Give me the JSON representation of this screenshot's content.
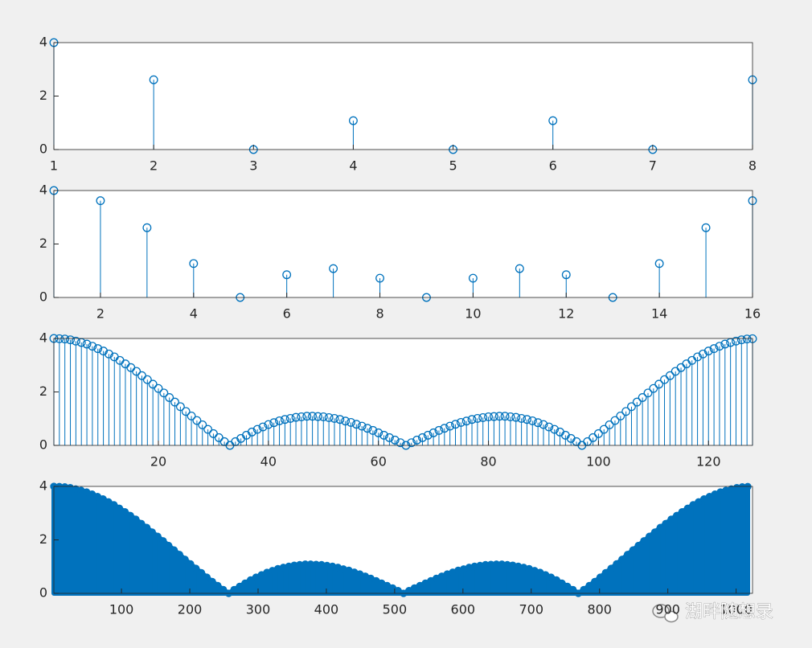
{
  "chart_data": [
    {
      "type": "stem",
      "color": "#0072bd",
      "filled": false,
      "x": [
        1,
        2,
        3,
        4,
        5,
        6,
        7,
        8
      ],
      "values": [
        4,
        2.61,
        0,
        1.08,
        0,
        1.08,
        0,
        2.61
      ],
      "xlim": [
        1,
        8
      ],
      "xticks": [
        1,
        2,
        3,
        4,
        5,
        6,
        7,
        8
      ],
      "ylim": [
        0,
        4
      ],
      "yticks": [
        0,
        2,
        4
      ]
    },
    {
      "type": "stem",
      "color": "#0072bd",
      "filled": false,
      "x": [
        1,
        2,
        3,
        4,
        5,
        6,
        7,
        8,
        9,
        10,
        11,
        12,
        13,
        14,
        15,
        16
      ],
      "values": [
        4,
        3.62,
        2.61,
        1.27,
        0,
        0.85,
        1.08,
        0.72,
        0,
        0.72,
        1.08,
        0.85,
        0,
        1.27,
        2.61,
        3.62
      ],
      "xlim": [
        1,
        16
      ],
      "xticks": [
        2,
        4,
        6,
        8,
        10,
        12,
        14,
        16
      ],
      "ylim": [
        0,
        4
      ],
      "yticks": [
        0,
        2,
        4
      ]
    },
    {
      "type": "stem",
      "color": "#0072bd",
      "filled": false,
      "x": [
        1,
        2,
        3,
        4,
        5,
        6,
        7,
        8,
        9,
        10,
        11,
        12,
        13,
        14,
        15,
        16,
        17,
        18,
        19,
        20,
        21,
        22,
        23,
        24,
        25,
        26,
        27,
        28,
        29,
        30,
        31,
        32,
        33,
        34,
        35,
        36,
        37,
        38,
        39,
        40,
        41,
        42,
        43,
        44,
        45,
        46,
        47,
        48,
        49,
        50,
        51,
        52,
        53,
        54,
        55,
        56,
        57,
        58,
        59,
        60,
        61,
        62,
        63,
        64,
        65,
        66,
        67,
        68,
        69,
        70,
        71,
        72,
        73,
        74,
        75,
        76,
        77,
        78,
        79,
        80,
        81,
        82,
        83,
        84,
        85,
        86,
        87,
        88,
        89,
        90,
        91,
        92,
        93,
        94,
        95,
        96,
        97,
        98,
        99,
        100,
        101,
        102,
        103,
        104,
        105,
        106,
        107,
        108,
        109,
        110,
        111,
        112,
        113,
        114,
        115,
        116,
        117,
        118,
        119,
        120,
        121,
        122,
        123,
        124,
        125,
        126,
        127,
        128
      ],
      "values": [
        4,
        3.99,
        3.98,
        3.95,
        3.9,
        3.85,
        3.79,
        3.71,
        3.62,
        3.53,
        3.42,
        3.31,
        3.18,
        3.05,
        2.91,
        2.77,
        2.61,
        2.46,
        2.29,
        2.13,
        1.96,
        1.79,
        1.62,
        1.45,
        1.27,
        1.1,
        0.93,
        0.77,
        0.6,
        0.44,
        0.29,
        0.14,
        0,
        0.14,
        0.26,
        0.38,
        0.5,
        0.6,
        0.69,
        0.78,
        0.85,
        0.92,
        0.97,
        1.01,
        1.05,
        1.07,
        1.09,
        1.09,
        1.08,
        1.07,
        1.04,
        1.01,
        0.97,
        0.91,
        0.86,
        0.79,
        0.72,
        0.64,
        0.56,
        0.47,
        0.38,
        0.29,
        0.2,
        0.1,
        0,
        0.1,
        0.2,
        0.29,
        0.38,
        0.47,
        0.56,
        0.64,
        0.72,
        0.79,
        0.86,
        0.91,
        0.97,
        1.01,
        1.04,
        1.07,
        1.08,
        1.09,
        1.09,
        1.07,
        1.05,
        1.01,
        0.97,
        0.92,
        0.85,
        0.78,
        0.69,
        0.6,
        0.5,
        0.38,
        0.26,
        0.14,
        0,
        0.14,
        0.29,
        0.44,
        0.6,
        0.77,
        0.93,
        1.1,
        1.27,
        1.45,
        1.62,
        1.79,
        1.96,
        2.13,
        2.29,
        2.46,
        2.61,
        2.77,
        2.91,
        3.05,
        3.18,
        3.31,
        3.42,
        3.53,
        3.62,
        3.71,
        3.79,
        3.85,
        3.9,
        3.95,
        3.98,
        3.99
      ],
      "xlim": [
        1,
        128
      ],
      "xticks": [
        20,
        40,
        60,
        80,
        100,
        120
      ],
      "ylim": [
        0,
        4
      ],
      "yticks": [
        0,
        2,
        4
      ]
    },
    {
      "type": "stem",
      "color": "#0072bd",
      "filled": true,
      "x": [
        1,
        9,
        17,
        25,
        33,
        41,
        49,
        57,
        65,
        73,
        81,
        89,
        97,
        105,
        113,
        121,
        129,
        137,
        145,
        153,
        161,
        169,
        177,
        185,
        193,
        201,
        209,
        217,
        225,
        233,
        241,
        249,
        257,
        265,
        273,
        281,
        289,
        297,
        305,
        313,
        321,
        329,
        337,
        345,
        353,
        361,
        369,
        377,
        385,
        393,
        401,
        409,
        417,
        425,
        433,
        441,
        449,
        457,
        465,
        473,
        481,
        489,
        497,
        505,
        513,
        521,
        529,
        537,
        545,
        553,
        561,
        569,
        577,
        585,
        593,
        601,
        609,
        617,
        625,
        633,
        641,
        649,
        657,
        665,
        673,
        681,
        689,
        697,
        705,
        713,
        721,
        729,
        737,
        745,
        753,
        761,
        769,
        777,
        785,
        793,
        801,
        809,
        817,
        825,
        833,
        841,
        849,
        857,
        865,
        873,
        881,
        889,
        897,
        905,
        913,
        921,
        929,
        937,
        945,
        953,
        961,
        969,
        977,
        985,
        993,
        1001,
        1009,
        1017
      ],
      "values": [
        4,
        3.99,
        3.98,
        3.95,
        3.9,
        3.85,
        3.79,
        3.71,
        3.62,
        3.53,
        3.42,
        3.31,
        3.18,
        3.05,
        2.91,
        2.77,
        2.61,
        2.46,
        2.29,
        2.13,
        1.96,
        1.79,
        1.62,
        1.45,
        1.27,
        1.1,
        0.93,
        0.77,
        0.6,
        0.44,
        0.29,
        0.14,
        0,
        0.14,
        0.26,
        0.38,
        0.5,
        0.6,
        0.69,
        0.78,
        0.85,
        0.92,
        0.97,
        1.01,
        1.05,
        1.07,
        1.09,
        1.09,
        1.08,
        1.07,
        1.04,
        1.01,
        0.97,
        0.91,
        0.86,
        0.79,
        0.72,
        0.64,
        0.56,
        0.47,
        0.38,
        0.29,
        0.2,
        0.1,
        0,
        0.1,
        0.2,
        0.29,
        0.38,
        0.47,
        0.56,
        0.64,
        0.72,
        0.79,
        0.86,
        0.91,
        0.97,
        1.01,
        1.04,
        1.07,
        1.08,
        1.09,
        1.09,
        1.07,
        1.05,
        1.01,
        0.97,
        0.92,
        0.85,
        0.78,
        0.69,
        0.6,
        0.5,
        0.38,
        0.26,
        0.14,
        0,
        0.14,
        0.29,
        0.44,
        0.6,
        0.77,
        0.93,
        1.1,
        1.27,
        1.45,
        1.62,
        1.79,
        1.96,
        2.13,
        2.29,
        2.46,
        2.61,
        2.77,
        2.91,
        3.05,
        3.18,
        3.31,
        3.42,
        3.53,
        3.62,
        3.71,
        3.79,
        3.85,
        3.9,
        3.95,
        3.98,
        3.99
      ],
      "xlim": [
        1,
        1024
      ],
      "xticks": [
        100,
        200,
        300,
        400,
        500,
        600,
        700,
        800,
        900,
        1000
      ],
      "ylim": [
        0,
        4
      ],
      "yticks": [
        0,
        2,
        4
      ]
    }
  ],
  "watermark": "湖畔随想录"
}
